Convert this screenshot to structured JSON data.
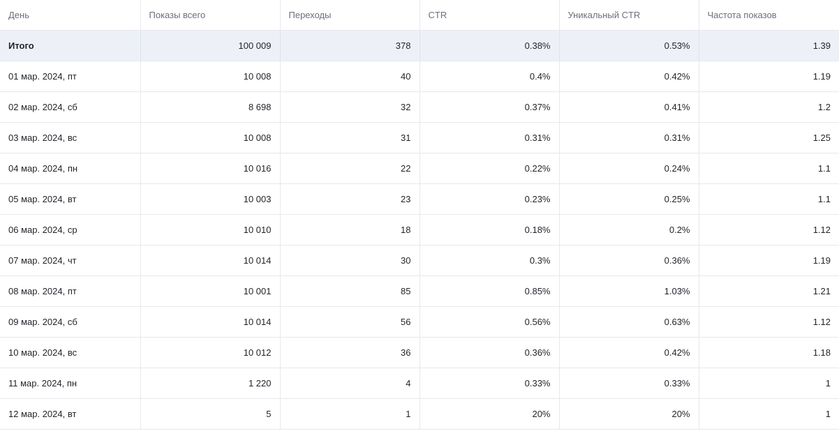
{
  "table": {
    "headers": [
      "День",
      "Показы всего",
      "Переходы",
      "CTR",
      "Уникальный CTR",
      "Частота показов"
    ],
    "total": {
      "day": "Итого",
      "impressions": "100 009",
      "clicks": "378",
      "ctr": "0.38%",
      "unique_ctr": "0.53%",
      "frequency": "1.39"
    },
    "rows": [
      {
        "day": "01 мар. 2024, пт",
        "impressions": "10 008",
        "clicks": "40",
        "ctr": "0.4%",
        "unique_ctr": "0.42%",
        "frequency": "1.19"
      },
      {
        "day": "02 мар. 2024, сб",
        "impressions": "8 698",
        "clicks": "32",
        "ctr": "0.37%",
        "unique_ctr": "0.41%",
        "frequency": "1.2"
      },
      {
        "day": "03 мар. 2024, вс",
        "impressions": "10 008",
        "clicks": "31",
        "ctr": "0.31%",
        "unique_ctr": "0.31%",
        "frequency": "1.25"
      },
      {
        "day": "04 мар. 2024, пн",
        "impressions": "10 016",
        "clicks": "22",
        "ctr": "0.22%",
        "unique_ctr": "0.24%",
        "frequency": "1.1"
      },
      {
        "day": "05 мар. 2024, вт",
        "impressions": "10 003",
        "clicks": "23",
        "ctr": "0.23%",
        "unique_ctr": "0.25%",
        "frequency": "1.1"
      },
      {
        "day": "06 мар. 2024, ср",
        "impressions": "10 010",
        "clicks": "18",
        "ctr": "0.18%",
        "unique_ctr": "0.2%",
        "frequency": "1.12"
      },
      {
        "day": "07 мар. 2024, чт",
        "impressions": "10 014",
        "clicks": "30",
        "ctr": "0.3%",
        "unique_ctr": "0.36%",
        "frequency": "1.19"
      },
      {
        "day": "08 мар. 2024, пт",
        "impressions": "10 001",
        "clicks": "85",
        "ctr": "0.85%",
        "unique_ctr": "1.03%",
        "frequency": "1.21"
      },
      {
        "day": "09 мар. 2024, сб",
        "impressions": "10 014",
        "clicks": "56",
        "ctr": "0.56%",
        "unique_ctr": "0.63%",
        "frequency": "1.12"
      },
      {
        "day": "10 мар. 2024, вс",
        "impressions": "10 012",
        "clicks": "36",
        "ctr": "0.36%",
        "unique_ctr": "0.42%",
        "frequency": "1.18"
      },
      {
        "day": "11 мар. 2024, пн",
        "impressions": "1 220",
        "clicks": "4",
        "ctr": "0.33%",
        "unique_ctr": "0.33%",
        "frequency": "1"
      },
      {
        "day": "12 мар. 2024, вт",
        "impressions": "5",
        "clicks": "1",
        "ctr": "20%",
        "unique_ctr": "20%",
        "frequency": "1"
      }
    ]
  },
  "colors": {
    "header_text": "#6b6f78",
    "total_row_bg": "#edf1f7",
    "grid_line": "#e6e8ec"
  }
}
